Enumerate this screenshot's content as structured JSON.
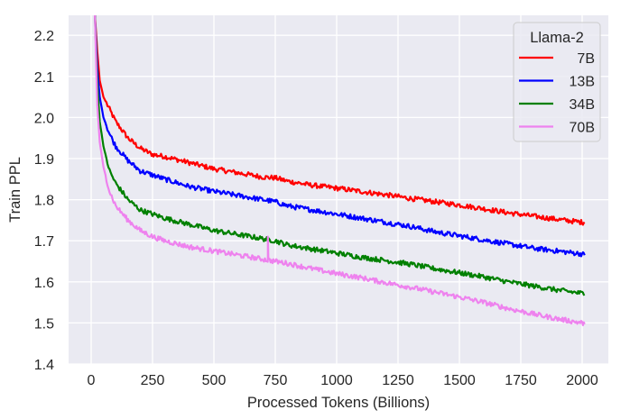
{
  "chart_data": {
    "type": "line",
    "title": "",
    "xlabel": "Processed Tokens (Billions)",
    "ylabel": "Train PPL",
    "xlim": [
      -90,
      2110
    ],
    "ylim": [
      1.4,
      2.248
    ],
    "xticks": [
      0,
      250,
      500,
      750,
      1000,
      1250,
      1500,
      1750,
      2000
    ],
    "xtick_labels": [
      "0",
      "250",
      "500",
      "750",
      "1000",
      "1250",
      "1500",
      "1750",
      "2000"
    ],
    "yticks": [
      1.4,
      1.5,
      1.6,
      1.7,
      1.8,
      1.9,
      2.0,
      2.1,
      2.2
    ],
    "ytick_labels": [
      "1.4",
      "1.5",
      "1.6",
      "1.7",
      "1.8",
      "1.9",
      "2.0",
      "2.1",
      "2.2"
    ],
    "grid": true,
    "background": "#eaeaf2",
    "grid_color": "#ffffff",
    "legend": {
      "title": "Llama-2",
      "position": "upper right"
    },
    "x": [
      15,
      25,
      35,
      50,
      75,
      100,
      150,
      200,
      250,
      300,
      400,
      500,
      600,
      700,
      750,
      800,
      900,
      1000,
      1100,
      1200,
      1300,
      1400,
      1500,
      1600,
      1700,
      1800,
      1900,
      2000,
      2010
    ],
    "series": [
      {
        "name": "7B",
        "color": "#ff0000",
        "values": [
          2.25,
          2.16,
          2.09,
          2.05,
          2.02,
          1.99,
          1.95,
          1.925,
          1.91,
          1.905,
          1.89,
          1.875,
          1.865,
          1.855,
          1.853,
          1.845,
          1.835,
          1.828,
          1.82,
          1.812,
          1.803,
          1.795,
          1.787,
          1.778,
          1.768,
          1.76,
          1.752,
          1.745,
          1.745
        ]
      },
      {
        "name": "13B",
        "color": "#0000ff",
        "values": [
          2.25,
          2.12,
          2.05,
          2.0,
          1.96,
          1.93,
          1.895,
          1.87,
          1.86,
          1.85,
          1.832,
          1.82,
          1.81,
          1.8,
          1.795,
          1.785,
          1.775,
          1.765,
          1.755,
          1.745,
          1.735,
          1.722,
          1.712,
          1.702,
          1.692,
          1.682,
          1.675,
          1.668,
          1.665
        ]
      },
      {
        "name": "34B",
        "color": "#008000",
        "values": [
          2.25,
          2.08,
          1.99,
          1.93,
          1.87,
          1.84,
          1.8,
          1.775,
          1.765,
          1.755,
          1.74,
          1.725,
          1.715,
          1.705,
          1.7,
          1.69,
          1.68,
          1.67,
          1.66,
          1.652,
          1.643,
          1.632,
          1.622,
          1.612,
          1.6,
          1.59,
          1.58,
          1.572,
          1.57
        ]
      },
      {
        "name": "70B",
        "color": "#ee82ee",
        "values": [
          2.25,
          2.03,
          1.94,
          1.88,
          1.82,
          1.785,
          1.75,
          1.725,
          1.71,
          1.7,
          1.685,
          1.675,
          1.665,
          1.655,
          1.65,
          1.645,
          1.632,
          1.62,
          1.61,
          1.598,
          1.587,
          1.575,
          1.563,
          1.55,
          1.535,
          1.522,
          1.51,
          1.5,
          1.497
        ]
      }
    ],
    "annotations": [
      {
        "series": "70B",
        "type": "spike",
        "x": 720,
        "from": 1.66,
        "to": 1.71
      }
    ]
  }
}
